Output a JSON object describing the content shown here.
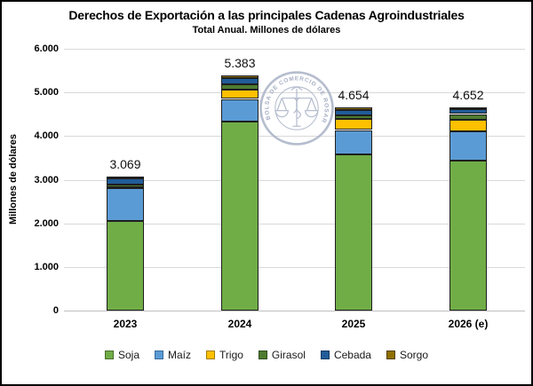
{
  "header": {
    "title": "Derechos de Exportación a las principales Cadenas Agroindustriales",
    "subtitle": "Total Anual. Millones de dólares"
  },
  "y_axis": {
    "title": "Millones de dólares",
    "ticks": [
      {
        "value": 6000,
        "label": "6.000"
      },
      {
        "value": 5000,
        "label": "5.000"
      },
      {
        "value": 4000,
        "label": "4.000"
      },
      {
        "value": 3000,
        "label": "3.000"
      },
      {
        "value": 2000,
        "label": "2.000"
      },
      {
        "value": 1000,
        "label": "1.000"
      },
      {
        "value": 0,
        "label": "0"
      }
    ]
  },
  "chart_data": {
    "type": "bar",
    "stacked": true,
    "title": "Derechos de Exportación a las principales Cadenas Agroindustriales",
    "subtitle": "Total Anual. Millones de dólares",
    "xlabel": "",
    "ylabel": "Millones de dólares",
    "ylim": [
      0,
      6000
    ],
    "grid": true,
    "legend_position": "bottom",
    "categories": [
      "2023",
      "2024",
      "2025",
      "2026 (e)"
    ],
    "series": [
      {
        "name": "Soja",
        "color": "#70AD47",
        "border": "#4a6e2a",
        "values": [
          2050,
          4330,
          3590,
          3430
        ]
      },
      {
        "name": "Maíz",
        "color": "#5B9BD5",
        "border": "#3a6a99",
        "values": [
          754,
          520,
          550,
          670
        ]
      },
      {
        "name": "Trigo",
        "color": "#FFC000",
        "border": "#a37c00",
        "values": [
          30,
          210,
          260,
          265
        ]
      },
      {
        "name": "Girasol",
        "color": "#4E7B30",
        "border": "#2f4d1c",
        "values": [
          50,
          120,
          80,
          140
        ]
      },
      {
        "name": "Cebada",
        "color": "#215C98",
        "border": "#143a61",
        "values": [
          145,
          150,
          120,
          105
        ]
      },
      {
        "name": "Sorgo",
        "color": "#8F6F00",
        "border": "#544100",
        "values": [
          40,
          53,
          54,
          42
        ]
      }
    ],
    "totals": [
      3069,
      5383,
      4654,
      4652
    ],
    "total_labels": [
      "3.069",
      "5.383",
      "4.654",
      "4.652"
    ]
  },
  "watermark": {
    "text": "BOLSA DE COMERCIO DE ROSARIO"
  }
}
